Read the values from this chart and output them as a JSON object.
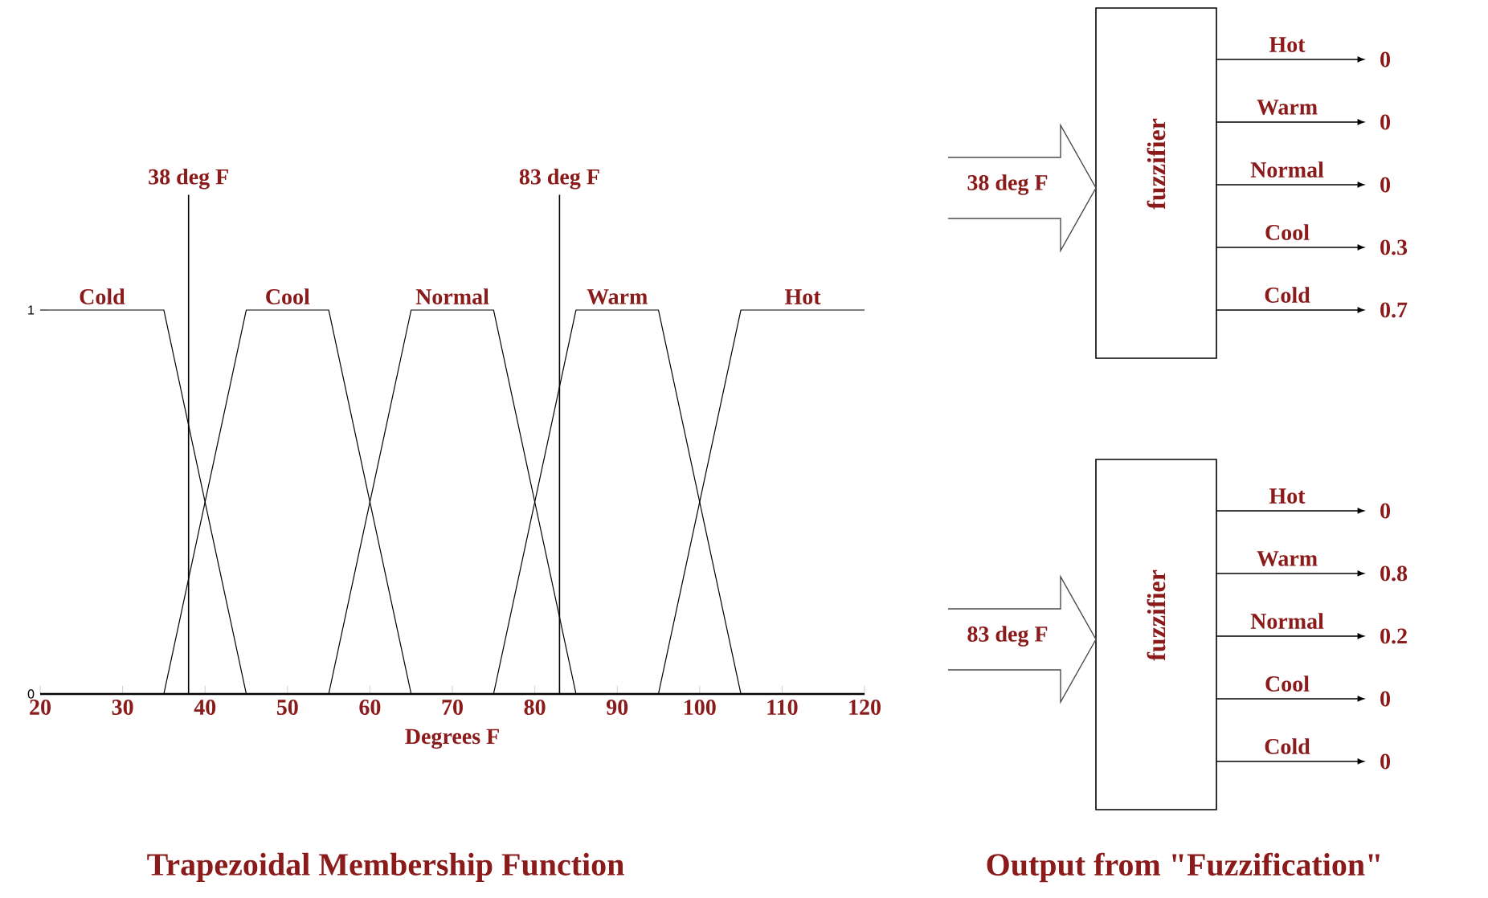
{
  "chart_data": [
    {
      "type": "line",
      "title": "Trapezoidal Membership Function",
      "xlabel": "Degrees F",
      "xlim": [
        20,
        120
      ],
      "xticks": [
        20,
        30,
        40,
        50,
        60,
        70,
        80,
        90,
        100,
        110,
        120
      ],
      "ylim": [
        0,
        1.3
      ],
      "yticks": [
        0,
        1
      ],
      "series": [
        {
          "name": "Cold",
          "color": "#000000",
          "x": [
            20,
            35,
            45
          ],
          "values": [
            1,
            1,
            0
          ]
        },
        {
          "name": "Cool",
          "color": "#000000",
          "x": [
            35,
            45,
            55,
            65
          ],
          "values": [
            0,
            1,
            1,
            0
          ]
        },
        {
          "name": "Normal",
          "color": "#000000",
          "x": [
            55,
            65,
            75,
            85
          ],
          "values": [
            0,
            1,
            1,
            0
          ]
        },
        {
          "name": "Warm",
          "color": "#000000",
          "x": [
            75,
            85,
            95,
            105
          ],
          "values": [
            0,
            1,
            1,
            0
          ]
        },
        {
          "name": "Hot",
          "color": "#000000",
          "x": [
            95,
            105,
            120
          ],
          "values": [
            0,
            1,
            1
          ]
        }
      ],
      "ref_lines": [
        {
          "axis": "x",
          "value": 38,
          "label": "38 deg F",
          "color": "#000000"
        },
        {
          "axis": "x",
          "value": 83,
          "label": "83 deg F",
          "color": "#000000"
        }
      ]
    },
    {
      "type": "other",
      "title": "Output from \"Fuzzification\"",
      "categories": [
        "Hot",
        "Warm",
        "Normal",
        "Cool",
        "Cold"
      ],
      "series": [
        {
          "name": "38 deg F",
          "values": [
            0,
            0,
            0,
            0.3,
            0.7
          ]
        },
        {
          "name": "83 deg F",
          "values": [
            0,
            0.8,
            0.2,
            0,
            0
          ]
        }
      ],
      "data_labels": true,
      "annotations": [
        "fuzzifier",
        "fuzzifier"
      ]
    }
  ]
}
